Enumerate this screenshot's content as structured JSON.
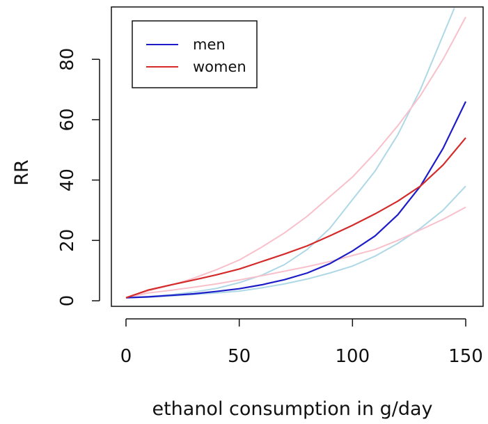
{
  "chart_data": {
    "type": "line",
    "xlabel": "ethanol consumption in g/day",
    "ylabel": "RR",
    "xlim": [
      0,
      150
    ],
    "ylim": [
      0,
      95
    ],
    "x_ticks": [
      "0",
      "50",
      "100",
      "150"
    ],
    "y_ticks": [
      "0",
      "20",
      "40",
      "60",
      "80"
    ],
    "grid": false,
    "legend_position": "top-left",
    "legend": [
      {
        "label": "men",
        "color": "#1c1cc8"
      },
      {
        "label": "women",
        "color": "#d42a2a"
      }
    ],
    "series": [
      {
        "name": "men",
        "color": "#1c1cc8",
        "x": [
          0,
          10,
          20,
          30,
          40,
          50,
          60,
          70,
          80,
          90,
          100,
          110,
          120,
          130,
          140,
          150
        ],
        "y": [
          1.0,
          1.3,
          1.8,
          2.3,
          3.1,
          4.0,
          5.3,
          7.0,
          9.2,
          12.3,
          16.5,
          21.5,
          28.5,
          38.0,
          50.5,
          66.0
        ]
      },
      {
        "color": "#aed8e6",
        "x": [
          0,
          10,
          20,
          30,
          40,
          50,
          60,
          70,
          80,
          90,
          100,
          110,
          120,
          130,
          140,
          145
        ],
        "y": [
          1.0,
          1.4,
          2.0,
          2.9,
          4.1,
          6.0,
          8.5,
          12.0,
          17.0,
          24.0,
          33.5,
          43.0,
          55.0,
          70.0,
          88.0,
          97.0
        ]
      },
      {
        "color": "#aed8e6",
        "x": [
          0,
          10,
          20,
          30,
          40,
          50,
          60,
          70,
          80,
          90,
          100,
          110,
          120,
          130,
          140,
          150
        ],
        "y": [
          1.0,
          1.2,
          1.6,
          2.1,
          2.6,
          3.2,
          4.3,
          5.6,
          7.2,
          9.2,
          11.5,
          14.8,
          19.0,
          24.0,
          30.0,
          38.0
        ]
      },
      {
        "name": "women",
        "color": "#d42a2a",
        "x": [
          0,
          10,
          20,
          30,
          40,
          50,
          60,
          70,
          80,
          90,
          100,
          110,
          120,
          130,
          140,
          150
        ],
        "y": [
          1.0,
          3.6,
          5.3,
          6.9,
          8.6,
          10.5,
          13.0,
          15.5,
          18.2,
          21.5,
          25.0,
          28.8,
          33.0,
          38.0,
          45.0,
          54.0
        ]
      },
      {
        "color": "#f8c0cb",
        "x": [
          0,
          10,
          20,
          30,
          40,
          50,
          60,
          70,
          80,
          90,
          100,
          110,
          120,
          130,
          140,
          150
        ],
        "y": [
          1.0,
          3.3,
          5.2,
          7.5,
          10.3,
          13.5,
          17.8,
          22.5,
          28.0,
          34.5,
          41.0,
          49.0,
          58.0,
          68.0,
          80.0,
          94.0
        ]
      },
      {
        "color": "#f8c0cb",
        "x": [
          0,
          10,
          20,
          30,
          40,
          50,
          60,
          70,
          80,
          90,
          100,
          110,
          120,
          130,
          140,
          150
        ],
        "y": [
          1.0,
          2.6,
          3.5,
          4.5,
          5.6,
          6.9,
          8.3,
          9.8,
          11.3,
          13.0,
          15.0,
          17.0,
          20.0,
          23.5,
          27.0,
          31.0
        ]
      }
    ]
  }
}
